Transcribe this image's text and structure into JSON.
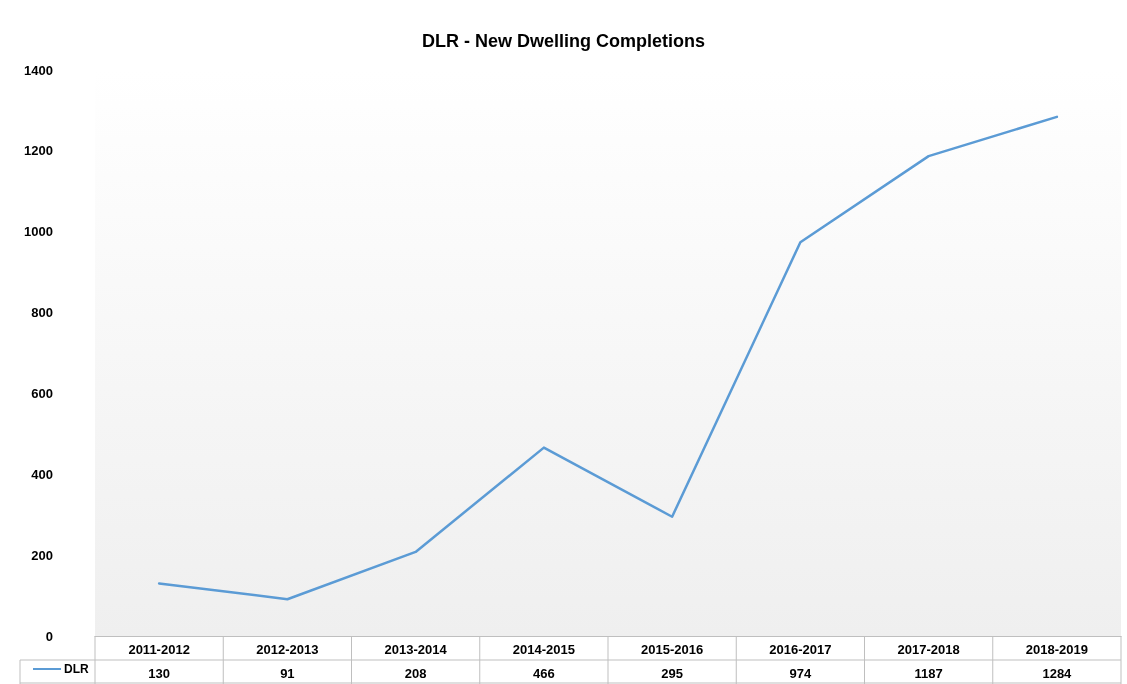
{
  "chart_data": {
    "type": "line",
    "title": "DLR - New Dwelling Completions",
    "categories": [
      "2011-2012",
      "2012-2013",
      "2013-2014",
      "2014-2015",
      "2015-2016",
      "2016-2017",
      "2017-2018",
      "2018-2019"
    ],
    "series": [
      {
        "name": "DLR",
        "color": "#5b9bd5",
        "values": [
          130,
          91,
          208,
          466,
          295,
          974,
          1187,
          1284
        ]
      }
    ],
    "ylim": [
      0,
      1400
    ],
    "yticks": [
      0,
      200,
      400,
      600,
      800,
      1000,
      1200,
      1400
    ],
    "data_labels": true,
    "legend": "bottom left",
    "grid": false,
    "marker": "none",
    "line_style": "solid"
  }
}
